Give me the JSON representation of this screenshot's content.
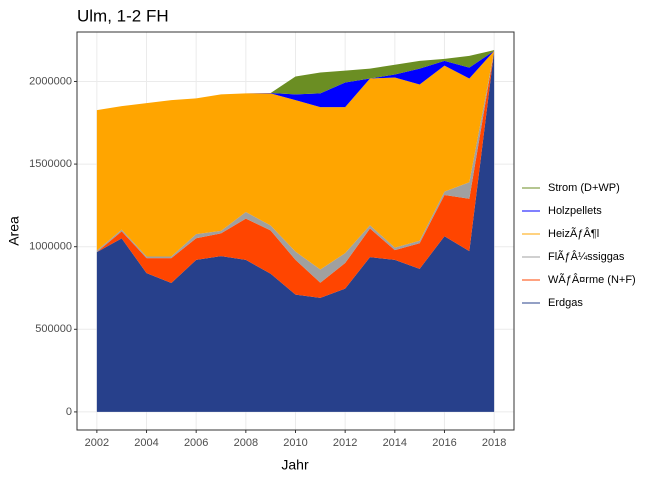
{
  "chart_data": {
    "type": "area",
    "stacked": true,
    "title": "Ulm, 1-2 FH",
    "x_label": "Jahr",
    "y_label": "Area",
    "x": [
      2002,
      2003,
      2004,
      2005,
      2006,
      2007,
      2008,
      2009,
      2010,
      2011,
      2012,
      2013,
      2014,
      2015,
      2016,
      2017,
      2018
    ],
    "series": [
      {
        "name": "Erdgas",
        "color": "#27408B",
        "values": [
          967000,
          1050000,
          840000,
          780000,
          920000,
          943000,
          920000,
          836000,
          710000,
          690000,
          746000,
          937000,
          920000,
          866000,
          1063000,
          973000,
          2185000
        ]
      },
      {
        "name": "WÃƒÂ¤rme (N+F)",
        "color": "#FF4500",
        "values": [
          0,
          43000,
          91000,
          151000,
          131000,
          138000,
          250000,
          262000,
          210000,
          92000,
          155000,
          173000,
          59000,
          155000,
          250000,
          317000,
          0
        ]
      },
      {
        "name": "FlÃƒÂ¼ssiggas",
        "color": "#A0A0A0",
        "values": [
          10000,
          10000,
          10000,
          10000,
          25000,
          15000,
          40000,
          30000,
          50000,
          80000,
          60000,
          20000,
          15000,
          15000,
          20000,
          100000,
          0
        ]
      },
      {
        "name": "HeizÃƒÂ¶l",
        "color": "#FFA500",
        "values": [
          850000,
          748000,
          928000,
          946000,
          822000,
          826000,
          718000,
          800000,
          917000,
          983000,
          884000,
          888000,
          1030000,
          946000,
          763000,
          628000,
          0
        ]
      },
      {
        "name": "Holzpellets",
        "color": "#0000FF",
        "values": [
          0,
          0,
          0,
          0,
          0,
          0,
          0,
          2000,
          35000,
          83000,
          149000,
          0,
          18000,
          96000,
          29000,
          66000,
          0
        ]
      },
      {
        "name": "Strom (D+WP)",
        "color": "#6B8E23",
        "values": [
          0,
          0,
          0,
          0,
          0,
          0,
          0,
          0,
          108000,
          126000,
          72000,
          60000,
          59000,
          47000,
          12000,
          71000,
          5000
        ]
      }
    ],
    "xlim": [
      2001.2,
      2018.8
    ],
    "xticks": [
      2002,
      2004,
      2006,
      2008,
      2010,
      2012,
      2014,
      2016,
      2018
    ],
    "ylim": [
      -109500,
      2299500
    ],
    "yticks": [
      0,
      500000,
      1000000,
      1500000,
      2000000
    ],
    "grid": true,
    "legend": "right"
  }
}
